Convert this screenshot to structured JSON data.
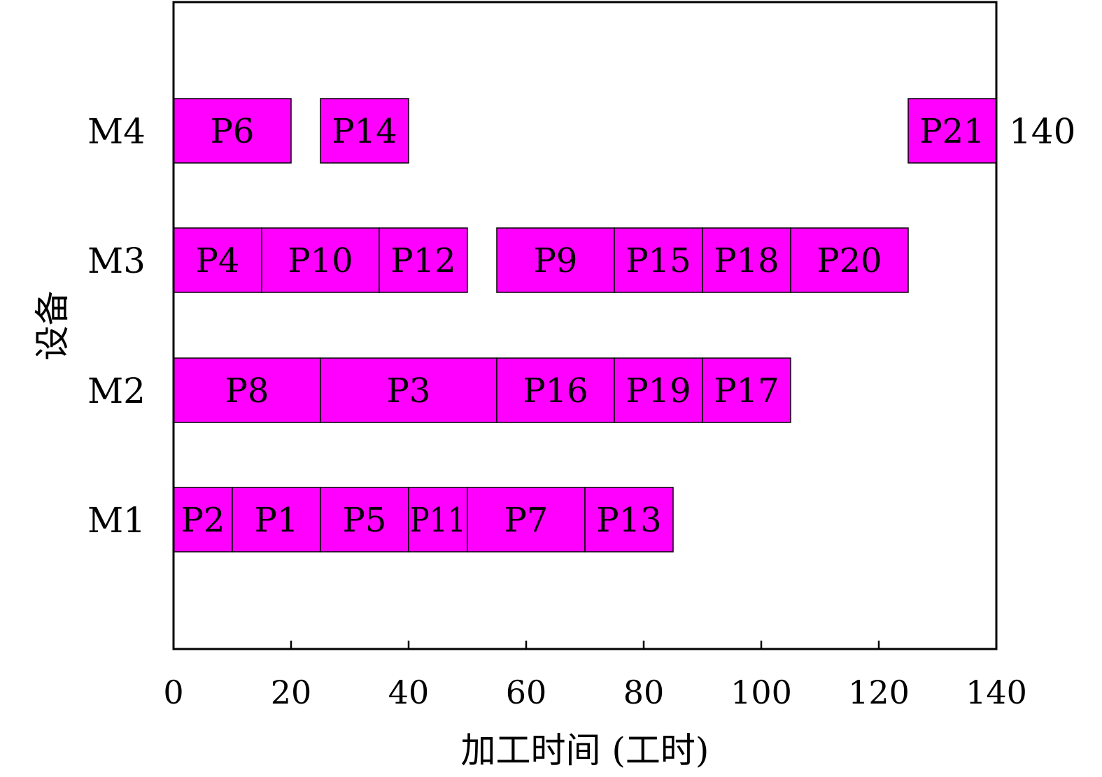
{
  "chart_data": {
    "type": "gantt",
    "title": "",
    "xlabel": "加工时间 (工时)",
    "ylabel": "设备",
    "xlim": [
      0,
      140
    ],
    "xticks": [
      0,
      20,
      40,
      60,
      80,
      100,
      120,
      140
    ],
    "grid": false,
    "bar_color": "#ff00ff",
    "rows": [
      {
        "label": "M1",
        "tasks": [
          {
            "name": "P2",
            "start": 0,
            "end": 10
          },
          {
            "name": "P1",
            "start": 10,
            "end": 25
          },
          {
            "name": "P5",
            "start": 25,
            "end": 40
          },
          {
            "name": "P11",
            "start": 40,
            "end": 50
          },
          {
            "name": "P7",
            "start": 50,
            "end": 70
          },
          {
            "name": "P13",
            "start": 70,
            "end": 85
          }
        ]
      },
      {
        "label": "M2",
        "tasks": [
          {
            "name": "P8",
            "start": 0,
            "end": 25
          },
          {
            "name": "P3",
            "start": 25,
            "end": 55
          },
          {
            "name": "P16",
            "start": 55,
            "end": 75
          },
          {
            "name": "P19",
            "start": 75,
            "end": 90
          },
          {
            "name": "P17",
            "start": 90,
            "end": 105
          }
        ]
      },
      {
        "label": "M3",
        "tasks": [
          {
            "name": "P4",
            "start": 0,
            "end": 15
          },
          {
            "name": "P10",
            "start": 15,
            "end": 35
          },
          {
            "name": "P12",
            "start": 35,
            "end": 50
          },
          {
            "name": "P9",
            "start": 55,
            "end": 75
          },
          {
            "name": "P15",
            "start": 75,
            "end": 90
          },
          {
            "name": "P18",
            "start": 90,
            "end": 105
          },
          {
            "name": "P20",
            "start": 105,
            "end": 125
          }
        ]
      },
      {
        "label": "M4",
        "tasks": [
          {
            "name": "P6",
            "start": 0,
            "end": 20
          },
          {
            "name": "P14",
            "start": 25,
            "end": 40
          },
          {
            "name": "P21",
            "start": 125,
            "end": 140
          }
        ]
      }
    ],
    "makespan_label": "140"
  }
}
